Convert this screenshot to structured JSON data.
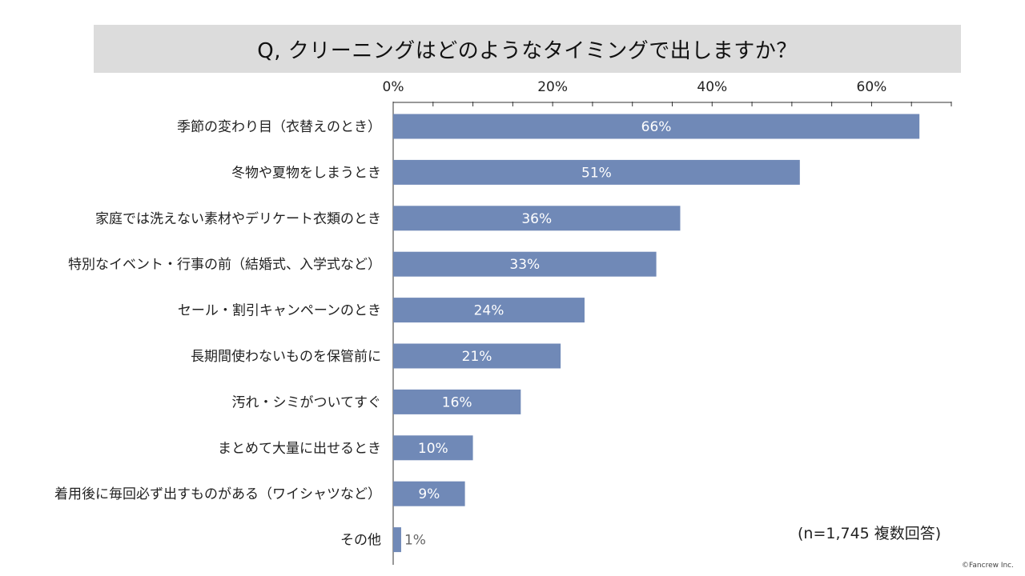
{
  "header": {
    "title": "Q, クリーニングはどのようなタイミングで出しますか？"
  },
  "chart_data": {
    "type": "bar",
    "orientation": "horizontal",
    "title": "Q, クリーニングはどのようなタイミングで出しますか？",
    "categories": [
      "季節の変わり目（衣替えのとき）",
      "冬物や夏物をしまうとき",
      "家庭では洗えない素材やデリケート衣類のとき",
      "特別なイベント・行事の前（結婚式、入学式など）",
      "セール・割引キャンペーンのとき",
      "長期間使わないものを保管前に",
      "汚れ・シミがついてすぐ",
      "まとめて大量に出せるとき",
      "着用後に毎回必ず出すものがある（ワイシャツなど）",
      "その他"
    ],
    "values": [
      66,
      51,
      36,
      33,
      24,
      21,
      16,
      10,
      9,
      1
    ],
    "value_labels": [
      "66%",
      "51%",
      "36%",
      "33%",
      "24%",
      "21%",
      "16%",
      "10%",
      "9%",
      "1%"
    ],
    "xlim": [
      0,
      70
    ],
    "tick_values": [
      0,
      20,
      40,
      60
    ],
    "tick_labels": [
      "0%",
      "20%",
      "40%",
      "60%"
    ],
    "minor_tick_step": 5,
    "axis_position": "top",
    "bar_color": "#7089b7",
    "label_color_inside": "#ffffff",
    "label_color_outside": "#666666"
  },
  "footer": {
    "note": "(n=1,745 複数回答)",
    "credit": "©Fancrew Inc."
  }
}
